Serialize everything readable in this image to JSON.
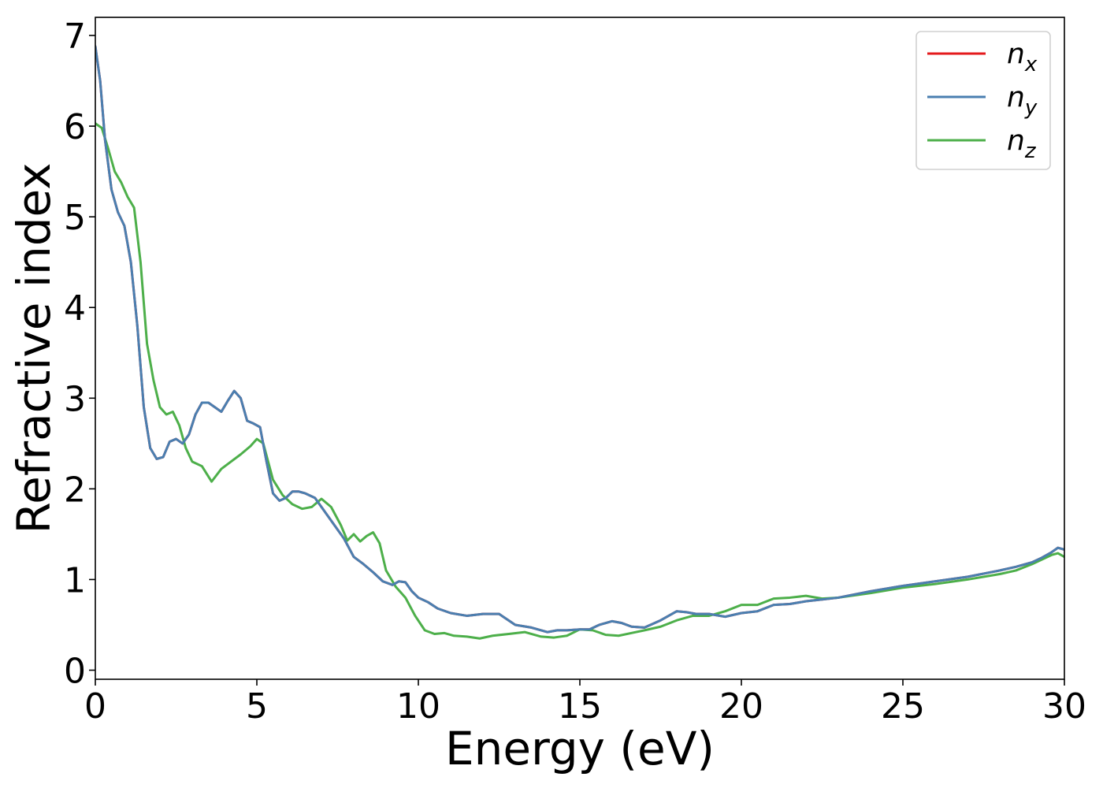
{
  "chart_data": {
    "type": "line",
    "xlabel": "Energy (eV)",
    "ylabel": "Refractive index",
    "xlim": [
      0,
      30
    ],
    "ylim": [
      -0.1,
      7.2
    ],
    "xticks": [
      0,
      5,
      10,
      15,
      20,
      25,
      30
    ],
    "yticks": [
      0,
      1,
      2,
      3,
      4,
      5,
      6,
      7
    ],
    "grid": false,
    "legend_position": "top-right",
    "series": [
      {
        "name": "n",
        "subscript": "x",
        "color": "#e41a1c",
        "x": [
          0,
          0.15,
          0.3,
          0.5,
          0.7,
          0.9,
          1.1,
          1.3,
          1.5,
          1.7,
          1.9,
          2.1,
          2.3,
          2.5,
          2.7,
          2.9,
          3.1,
          3.3,
          3.5,
          3.7,
          3.9,
          4.1,
          4.3,
          4.5,
          4.7,
          4.9,
          5.1,
          5.3,
          5.5,
          5.7,
          5.9,
          6.1,
          6.3,
          6.5,
          6.8,
          7.1,
          7.4,
          7.7,
          8.0,
          8.3,
          8.6,
          8.9,
          9.2,
          9.4,
          9.6,
          9.8,
          10.0,
          10.3,
          10.6,
          11.0,
          11.5,
          12.0,
          12.5,
          13.0,
          13.5,
          14.0,
          14.3,
          14.6,
          15.0,
          15.3,
          15.6,
          16.0,
          16.3,
          16.6,
          17.0,
          17.5,
          18.0,
          18.3,
          18.6,
          19.0,
          19.5,
          20.0,
          20.5,
          21.0,
          21.5,
          22.0,
          22.5,
          23.0,
          24.0,
          25.0,
          26.0,
          27.0,
          28.0,
          28.5,
          29.0,
          29.3,
          29.6,
          29.8,
          30.0
        ],
        "y": [
          6.88,
          6.5,
          5.85,
          5.3,
          5.05,
          4.9,
          4.5,
          3.8,
          2.9,
          2.45,
          2.33,
          2.35,
          2.52,
          2.55,
          2.5,
          2.6,
          2.82,
          2.95,
          2.95,
          2.9,
          2.85,
          2.97,
          3.08,
          3.0,
          2.75,
          2.72,
          2.68,
          2.3,
          1.95,
          1.87,
          1.9,
          1.97,
          1.97,
          1.95,
          1.9,
          1.75,
          1.6,
          1.45,
          1.25,
          1.17,
          1.08,
          0.98,
          0.94,
          0.98,
          0.97,
          0.87,
          0.8,
          0.75,
          0.68,
          0.63,
          0.6,
          0.62,
          0.62,
          0.5,
          0.47,
          0.42,
          0.44,
          0.44,
          0.45,
          0.45,
          0.5,
          0.54,
          0.52,
          0.48,
          0.47,
          0.55,
          0.65,
          0.64,
          0.62,
          0.62,
          0.59,
          0.63,
          0.65,
          0.72,
          0.73,
          0.76,
          0.78,
          0.8,
          0.87,
          0.93,
          0.98,
          1.03,
          1.1,
          1.14,
          1.19,
          1.24,
          1.3,
          1.35,
          1.33
        ]
      },
      {
        "name": "n",
        "subscript": "y",
        "color": "#4a7fb0",
        "x": [
          0,
          0.15,
          0.3,
          0.5,
          0.7,
          0.9,
          1.1,
          1.3,
          1.5,
          1.7,
          1.9,
          2.1,
          2.3,
          2.5,
          2.7,
          2.9,
          3.1,
          3.3,
          3.5,
          3.7,
          3.9,
          4.1,
          4.3,
          4.5,
          4.7,
          4.9,
          5.1,
          5.3,
          5.5,
          5.7,
          5.9,
          6.1,
          6.3,
          6.5,
          6.8,
          7.1,
          7.4,
          7.7,
          8.0,
          8.3,
          8.6,
          8.9,
          9.2,
          9.4,
          9.6,
          9.8,
          10.0,
          10.3,
          10.6,
          11.0,
          11.5,
          12.0,
          12.5,
          13.0,
          13.5,
          14.0,
          14.3,
          14.6,
          15.0,
          15.3,
          15.6,
          16.0,
          16.3,
          16.6,
          17.0,
          17.5,
          18.0,
          18.3,
          18.6,
          19.0,
          19.5,
          20.0,
          20.5,
          21.0,
          21.5,
          22.0,
          22.5,
          23.0,
          24.0,
          25.0,
          26.0,
          27.0,
          28.0,
          28.5,
          29.0,
          29.3,
          29.6,
          29.8,
          30.0
        ],
        "y": [
          6.88,
          6.5,
          5.85,
          5.3,
          5.05,
          4.9,
          4.5,
          3.8,
          2.9,
          2.45,
          2.33,
          2.35,
          2.52,
          2.55,
          2.5,
          2.6,
          2.82,
          2.95,
          2.95,
          2.9,
          2.85,
          2.97,
          3.08,
          3.0,
          2.75,
          2.72,
          2.68,
          2.3,
          1.95,
          1.87,
          1.9,
          1.97,
          1.97,
          1.95,
          1.9,
          1.75,
          1.6,
          1.45,
          1.25,
          1.17,
          1.08,
          0.98,
          0.94,
          0.98,
          0.97,
          0.87,
          0.8,
          0.75,
          0.68,
          0.63,
          0.6,
          0.62,
          0.62,
          0.5,
          0.47,
          0.42,
          0.44,
          0.44,
          0.45,
          0.45,
          0.5,
          0.54,
          0.52,
          0.48,
          0.47,
          0.55,
          0.65,
          0.64,
          0.62,
          0.62,
          0.59,
          0.63,
          0.65,
          0.72,
          0.73,
          0.76,
          0.78,
          0.8,
          0.87,
          0.93,
          0.98,
          1.03,
          1.1,
          1.14,
          1.19,
          1.24,
          1.3,
          1.35,
          1.33
        ]
      },
      {
        "name": "n",
        "subscript": "z",
        "color": "#4daf4a",
        "x": [
          0,
          0.2,
          0.4,
          0.6,
          0.8,
          1.0,
          1.2,
          1.4,
          1.6,
          1.8,
          2.0,
          2.2,
          2.4,
          2.6,
          2.8,
          3.0,
          3.3,
          3.6,
          3.9,
          4.2,
          4.5,
          4.8,
          5.0,
          5.2,
          5.5,
          5.8,
          6.1,
          6.4,
          6.7,
          7.0,
          7.3,
          7.6,
          7.8,
          8.0,
          8.2,
          8.4,
          8.6,
          8.8,
          9.0,
          9.3,
          9.6,
          9.9,
          10.2,
          10.5,
          10.8,
          11.1,
          11.5,
          11.9,
          12.3,
          12.8,
          13.3,
          13.8,
          14.2,
          14.6,
          15.0,
          15.4,
          15.8,
          16.2,
          16.6,
          17.0,
          17.5,
          18.0,
          18.5,
          19.0,
          19.5,
          20.0,
          20.5,
          21.0,
          21.5,
          22.0,
          22.5,
          23.0,
          24.0,
          25.0,
          26.0,
          27.0,
          28.0,
          28.5,
          29.0,
          29.3,
          29.6,
          29.8,
          30.0
        ],
        "y": [
          6.03,
          5.98,
          5.75,
          5.5,
          5.38,
          5.22,
          5.1,
          4.5,
          3.6,
          3.2,
          2.9,
          2.82,
          2.85,
          2.7,
          2.45,
          2.3,
          2.25,
          2.08,
          2.22,
          2.3,
          2.38,
          2.47,
          2.55,
          2.5,
          2.1,
          1.93,
          1.83,
          1.78,
          1.8,
          1.89,
          1.8,
          1.6,
          1.43,
          1.5,
          1.42,
          1.48,
          1.52,
          1.4,
          1.1,
          0.92,
          0.8,
          0.6,
          0.44,
          0.4,
          0.41,
          0.38,
          0.37,
          0.35,
          0.38,
          0.4,
          0.42,
          0.37,
          0.36,
          0.38,
          0.45,
          0.44,
          0.39,
          0.38,
          0.41,
          0.44,
          0.48,
          0.55,
          0.6,
          0.6,
          0.65,
          0.72,
          0.72,
          0.79,
          0.8,
          0.82,
          0.79,
          0.8,
          0.85,
          0.91,
          0.95,
          1.0,
          1.06,
          1.1,
          1.17,
          1.22,
          1.27,
          1.29,
          1.25
        ]
      }
    ]
  }
}
